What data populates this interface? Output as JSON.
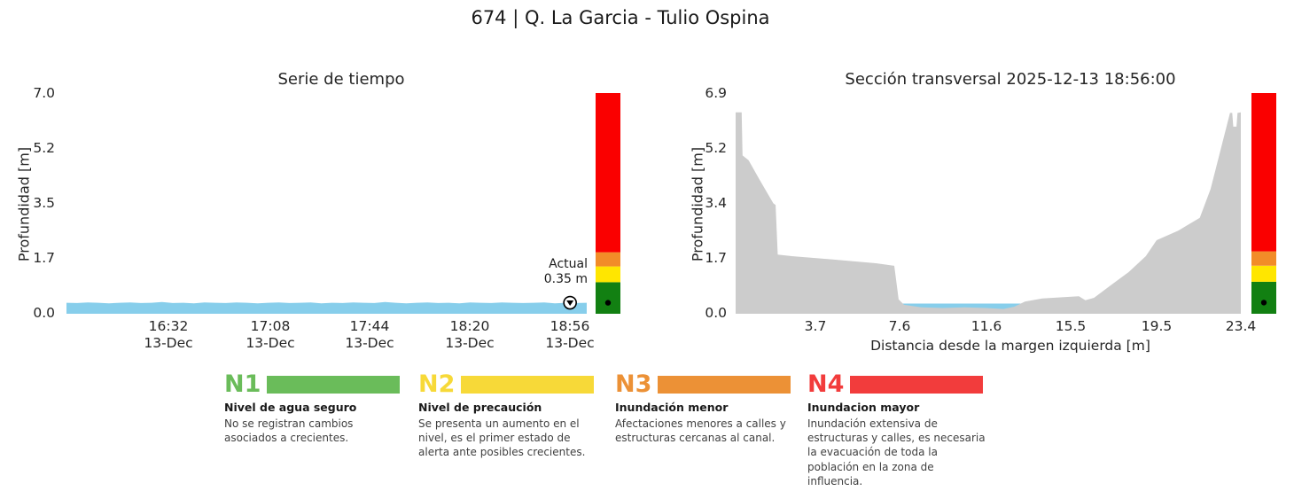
{
  "page_title": "674 | Q. La Garcia - Tulio Ospina",
  "colors": {
    "water": "#87CEEB",
    "terrain": "#cccccc",
    "bar_green": "#128012",
    "bar_yellow": "#ffe600",
    "bar_orange": "#f28c28",
    "bar_red": "#fa0000"
  },
  "alert_levels": {
    "n1_max": 1.0,
    "n2_max": 1.5,
    "n3_max": 1.95
  },
  "chart_data": [
    {
      "type": "area",
      "title": "Serie de tiempo",
      "ylabel": "Profundidad [m]",
      "ylim": [
        0.0,
        7.0
      ],
      "yticks": [
        "7.0",
        "5.2",
        "3.5",
        "1.7",
        "0.0"
      ],
      "xticks": [
        {
          "time": "16:32",
          "date": "13-Dec"
        },
        {
          "time": "17:08",
          "date": "13-Dec"
        },
        {
          "time": "17:44",
          "date": "13-Dec"
        },
        {
          "time": "18:20",
          "date": "13-Dec"
        },
        {
          "time": "18:56",
          "date": "13-Dec"
        }
      ],
      "current_label": "Actual",
      "current_value": "0.35 m",
      "current_depth": 0.35,
      "series": [
        {
          "name": "Profundidad",
          "values": [
            0.35,
            0.34,
            0.36,
            0.35,
            0.33,
            0.35,
            0.36,
            0.34,
            0.35,
            0.37,
            0.34,
            0.35,
            0.33,
            0.36,
            0.35,
            0.34,
            0.36,
            0.35,
            0.33,
            0.35,
            0.36,
            0.34,
            0.35,
            0.36,
            0.33,
            0.35,
            0.34,
            0.36,
            0.35,
            0.34,
            0.37,
            0.35,
            0.33,
            0.35,
            0.36,
            0.34,
            0.35,
            0.33,
            0.36,
            0.35,
            0.34,
            0.36,
            0.35,
            0.34,
            0.35,
            0.36,
            0.33,
            0.35,
            0.34,
            0.35
          ]
        }
      ]
    },
    {
      "type": "area",
      "title": "Sección transversal 2025-12-13 18:56:00",
      "xlabel": "Distancia desde la margen izquierda [m]",
      "ylabel": "Profundidad [m]",
      "xlim": [
        0.0,
        23.4
      ],
      "ylim": [
        0.0,
        6.9
      ],
      "yticks": [
        "6.9",
        "5.2",
        "3.4",
        "1.7",
        "0.0"
      ],
      "xticks": [
        "3.7",
        "7.6",
        "11.6",
        "15.5",
        "19.5",
        "23.4"
      ],
      "current_depth": 0.35,
      "terrain": [
        [
          0.0,
          6.3
        ],
        [
          0.28,
          6.3
        ],
        [
          0.32,
          4.95
        ],
        [
          0.6,
          4.8
        ],
        [
          1.1,
          4.2
        ],
        [
          1.75,
          3.45
        ],
        [
          1.85,
          3.4
        ],
        [
          1.95,
          1.85
        ],
        [
          2.6,
          1.8
        ],
        [
          4.5,
          1.7
        ],
        [
          6.5,
          1.58
        ],
        [
          7.35,
          1.5
        ],
        [
          7.55,
          0.45
        ],
        [
          7.8,
          0.28
        ],
        [
          8.6,
          0.2
        ],
        [
          9.6,
          0.18
        ],
        [
          10.6,
          0.2
        ],
        [
          11.6,
          0.18
        ],
        [
          12.4,
          0.15
        ],
        [
          12.9,
          0.22
        ],
        [
          13.4,
          0.38
        ],
        [
          14.2,
          0.48
        ],
        [
          15.2,
          0.52
        ],
        [
          15.9,
          0.55
        ],
        [
          16.2,
          0.42
        ],
        [
          16.6,
          0.5
        ],
        [
          17.3,
          0.85
        ],
        [
          18.2,
          1.3
        ],
        [
          19.0,
          1.8
        ],
        [
          19.5,
          2.3
        ],
        [
          20.5,
          2.6
        ],
        [
          21.5,
          3.0
        ],
        [
          22.0,
          3.9
        ],
        [
          22.9,
          6.28
        ],
        [
          23.0,
          6.28
        ],
        [
          23.05,
          5.85
        ],
        [
          23.2,
          5.85
        ],
        [
          23.25,
          6.28
        ],
        [
          23.4,
          6.3
        ]
      ],
      "water": {
        "x0": 7.6,
        "x1": 13.2,
        "surface": 0.32
      }
    }
  ],
  "legend": [
    {
      "code": "N1",
      "color": "#6abc5a",
      "title": "Nivel de agua seguro",
      "desc": "No se registran cambios asociados a crecientes."
    },
    {
      "code": "N2",
      "color": "#f7d938",
      "title": "Nivel de precaución",
      "desc": "Se presenta un aumento en el nivel, es el primer estado de alerta ante posibles crecientes."
    },
    {
      "code": "N3",
      "color": "#ec9136",
      "title": "Inundación menor",
      "desc": "Afectaciones menores a calles y estructuras cercanas al canal."
    },
    {
      "code": "N4",
      "color": "#f23c3c",
      "title": "Inundacion mayor",
      "desc": "Inundación extensiva de estructuras y calles, es necesaria la evacuación de toda la población en la zona de influencia."
    }
  ]
}
